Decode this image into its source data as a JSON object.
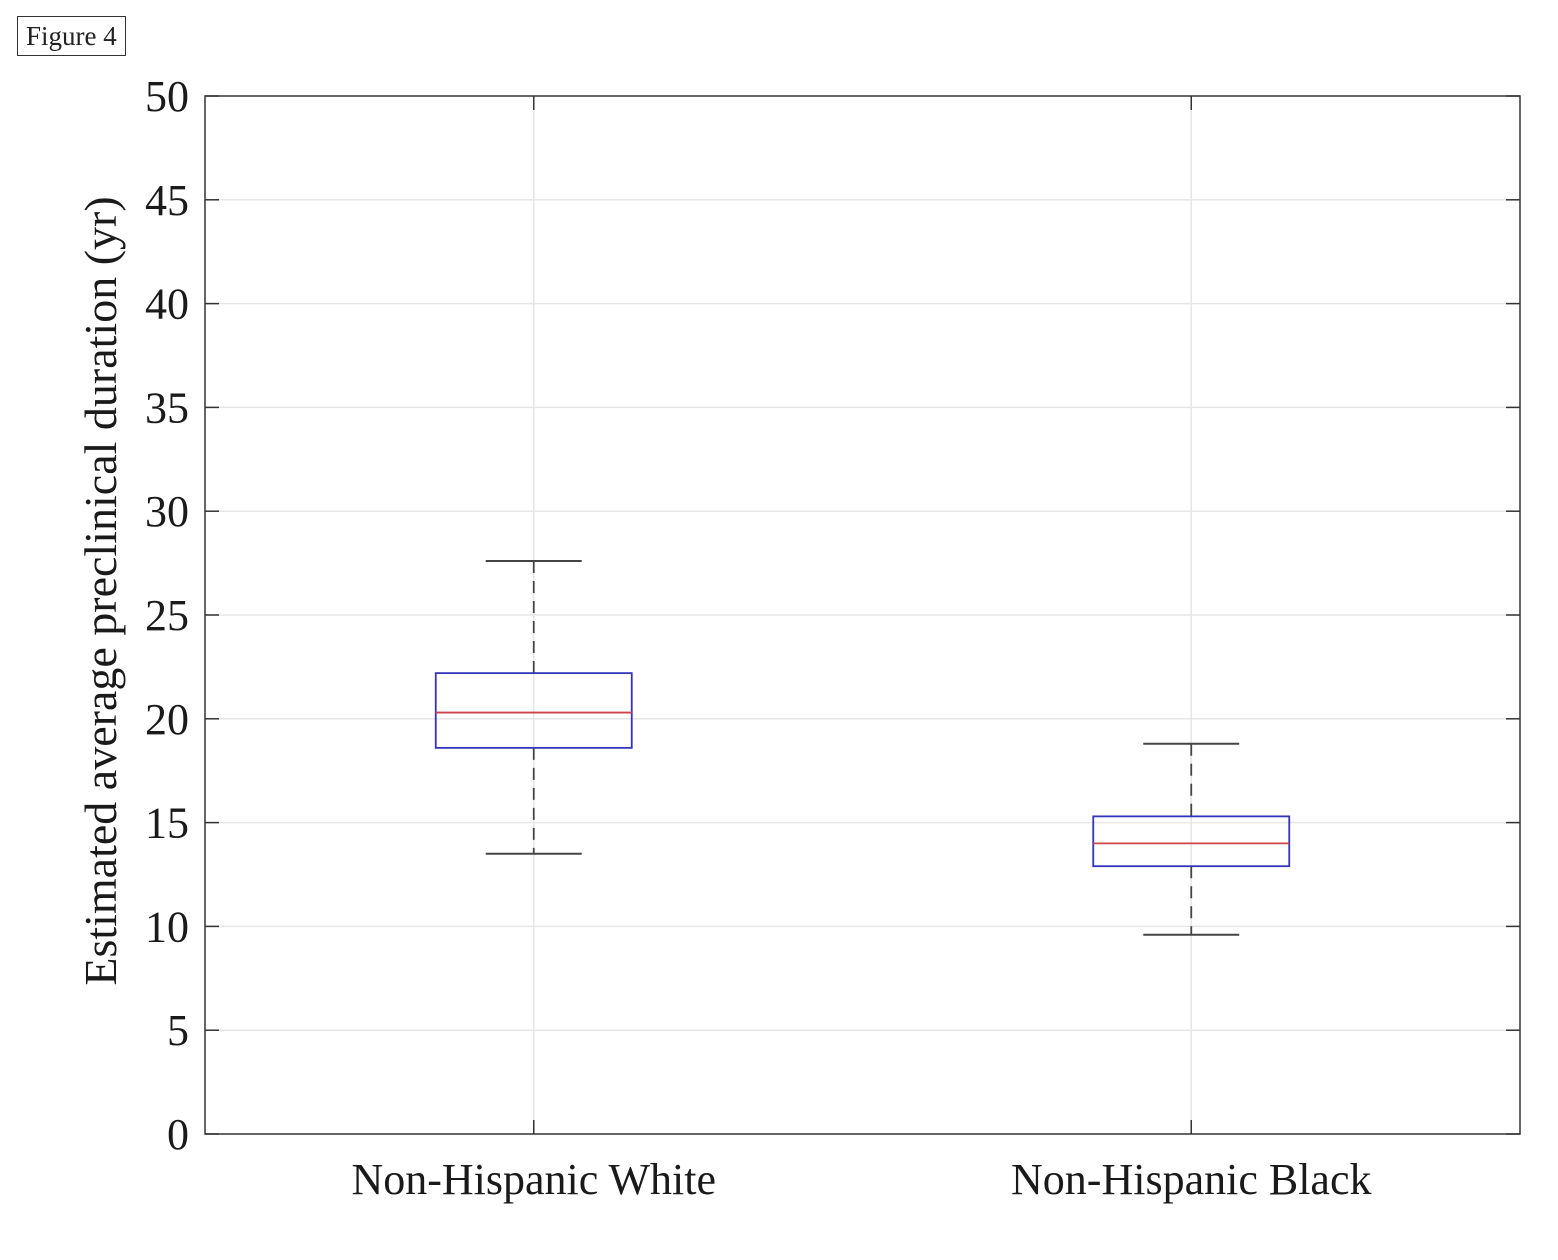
{
  "figure_label": "Figure 4",
  "chart_data": {
    "type": "box",
    "title": "",
    "xlabel": "",
    "ylabel": "Estimated average preclinical duration (yr)",
    "ylim": [
      0,
      50
    ],
    "yticks": [
      0,
      5,
      10,
      15,
      20,
      25,
      30,
      35,
      40,
      45,
      50
    ],
    "grid": true,
    "categories": [
      "Non-Hispanic White",
      "Non-Hispanic Black"
    ],
    "boxes": [
      {
        "whisker_low": 13.5,
        "q1": 18.6,
        "median": 20.3,
        "q3": 22.2,
        "whisker_high": 27.6
      },
      {
        "whisker_low": 9.6,
        "q1": 12.9,
        "median": 14.0,
        "q3": 15.3,
        "whisker_high": 18.8
      }
    ],
    "colors": {
      "box": "#3333bb",
      "median": "#cc4444",
      "whisker": "#444444",
      "grid": "#e6e6e6",
      "axis": "#333333"
    }
  }
}
